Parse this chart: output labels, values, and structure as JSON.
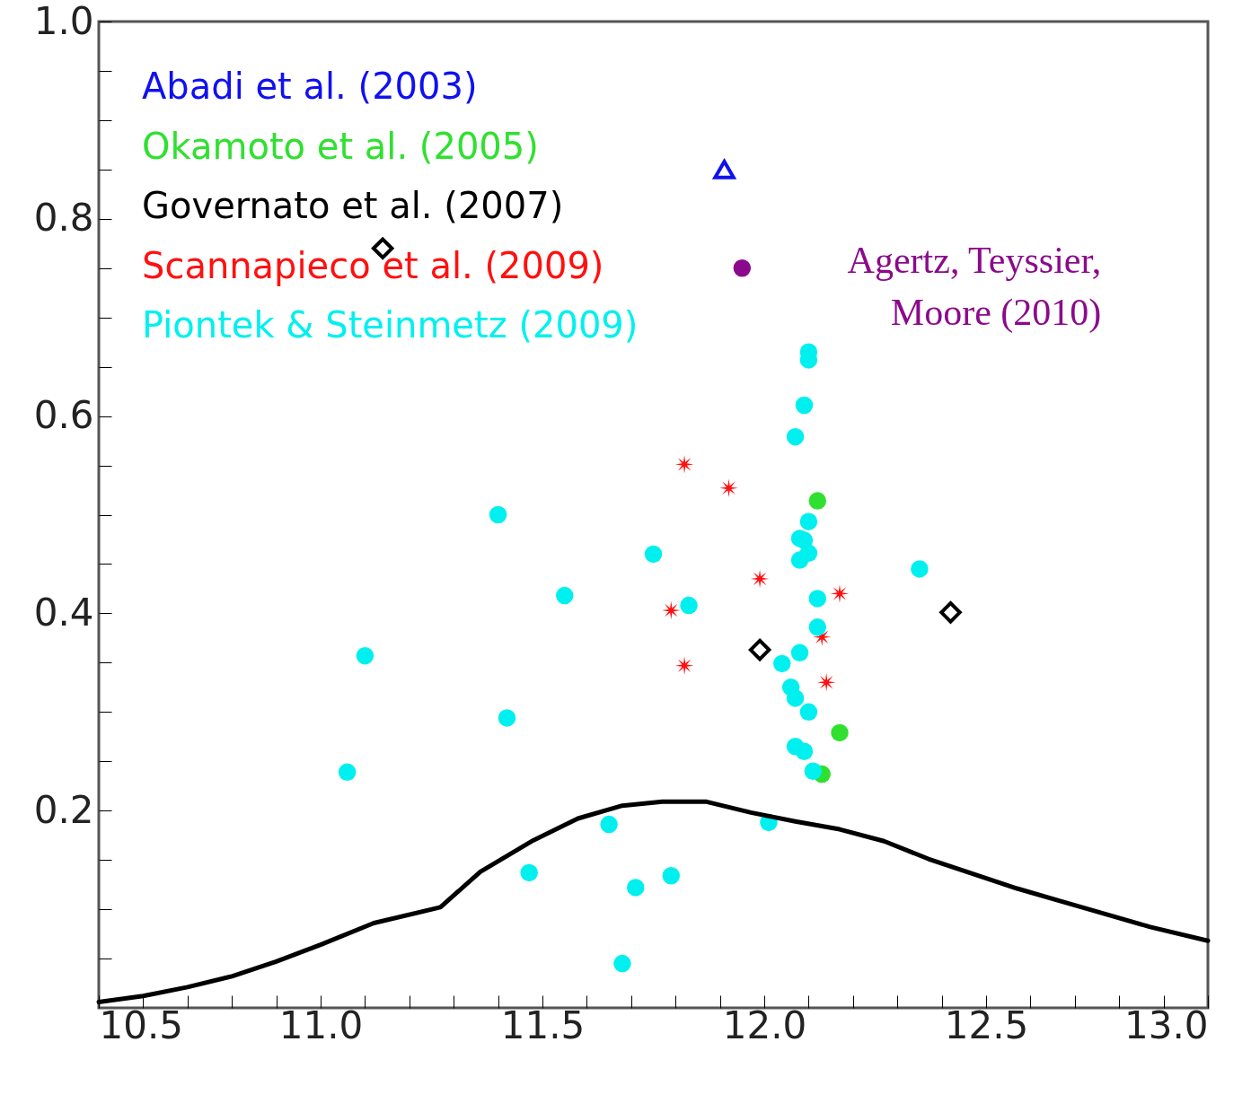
{
  "chart_data": {
    "type": "scatter",
    "legend": "top left",
    "xlim": [
      10.5,
      13.0
    ],
    "ylim": [
      0,
      1.0
    ],
    "xticks": [
      10.5,
      {
        "value": 10.6,
        "label": null
      },
      {
        "value": 10.7,
        "label": null
      },
      {
        "value": 10.8,
        "label": null
      },
      {
        "value": 10.9,
        "label": null
      },
      {
        "value": 11,
        "label": "11.0"
      },
      {
        "value": 11.1,
        "label": null
      },
      {
        "value": 11.2,
        "label": null
      },
      {
        "value": 11.3,
        "label": null
      },
      {
        "value": 11.4,
        "label": null
      },
      11.5,
      {
        "value": 11.6,
        "label": null
      },
      {
        "value": 11.7,
        "label": null
      },
      {
        "value": 11.8,
        "label": null
      },
      {
        "value": 11.9,
        "label": null
      },
      {
        "value": 12,
        "label": "12.0"
      },
      {
        "value": 12.1,
        "label": null
      },
      {
        "value": 12.2,
        "label": null
      },
      {
        "value": 12.3,
        "label": null
      },
      {
        "value": 12.4,
        "label": null
      },
      12.5,
      {
        "value": 12.6,
        "label": null
      },
      {
        "value": 12.7,
        "label": null
      },
      {
        "value": 12.8,
        "label": null
      },
      {
        "value": 12.9,
        "label": null
      },
      {
        "value": 13,
        "label": "13.0"
      }
    ],
    "yticks": [
      {
        "value": 0.05,
        "label": null
      },
      {
        "value": 0.1,
        "label": null
      },
      {
        "value": 0.15,
        "label": null
      },
      0.2,
      {
        "value": 0.25,
        "label": null
      },
      {
        "value": 0.3,
        "label": null
      },
      {
        "value": 0.35,
        "label": null
      },
      0.4,
      {
        "value": 0.45,
        "label": null
      },
      {
        "value": 0.5,
        "label": null
      },
      {
        "value": 0.55,
        "label": null
      },
      0.6,
      {
        "value": 0.65,
        "label": null
      },
      {
        "value": 0.7,
        "label": null
      },
      {
        "value": 0.75,
        "label": null
      },
      0.8,
      {
        "value": 0.85,
        "label": null
      },
      {
        "value": 0.9,
        "label": null
      },
      {
        "value": 0.95,
        "label": null
      },
      {
        "value": 1,
        "label": "1.0"
      }
    ],
    "annotations": [
      {
        "text": "Agertz, Teyssier,\nMoore (2010)",
        "x": 11.95,
        "y": 0.75
      }
    ],
    "series": [
      {
        "name": "Abadi et al. (2003)",
        "color": "#1010f0",
        "marker": "triangle",
        "x": [
          11.91
        ],
        "values": [
          0.85
        ]
      },
      {
        "name": "Okamoto et al. (2005)",
        "color": "#30e030",
        "marker": "circle",
        "x": [
          12.12,
          12.17,
          12.13
        ],
        "values": [
          0.514,
          0.279,
          0.237
        ]
      },
      {
        "name": "Governato et al. (2007)",
        "color": "#000000",
        "marker": "diamond",
        "x": [
          11.14,
          11.99,
          12.42
        ],
        "values": [
          0.77,
          0.363,
          0.401
        ]
      },
      {
        "name": "Scannapieco et al. (2009)",
        "color": "#ff1010",
        "marker": "cross",
        "x": [
          11.82,
          11.92,
          11.99,
          12.17,
          11.79,
          12.13,
          11.82,
          12.14
        ],
        "values": [
          0.551,
          0.527,
          0.435,
          0.42,
          0.403,
          0.376,
          0.347,
          0.33
        ]
      },
      {
        "name": "Piontek & Steinmetz (2009)",
        "color": "#00f0f0",
        "marker": "circle",
        "x": [
          12.1,
          12.1,
          12.09,
          12.07,
          11.4,
          12.1,
          12.08,
          12.09,
          12.1,
          12.08,
          11.75,
          12.35,
          11.55,
          12.12,
          11.83,
          11.1,
          12.12,
          12.08,
          12.04,
          12.06,
          12.07,
          12.1,
          11.42,
          12.07,
          12.09,
          12.11,
          11.06,
          12.01,
          11.65,
          11.47,
          11.79,
          11.71,
          11.68
        ],
        "values": [
          0.665,
          0.657,
          0.611,
          0.579,
          0.5,
          0.493,
          0.476,
          0.474,
          0.461,
          0.454,
          0.46,
          0.445,
          0.418,
          0.415,
          0.408,
          0.357,
          0.386,
          0.36,
          0.349,
          0.325,
          0.314,
          0.3,
          0.294,
          0.265,
          0.26,
          0.24,
          0.239,
          0.188,
          0.186,
          0.137,
          0.134,
          0.122,
          0.045
        ]
      },
      {
        "color": "#8b0a8b",
        "marker": "circle",
        "x": [
          11.95
        ],
        "values": [
          0.75
        ]
      },
      {
        "type": "line",
        "color": "#000000",
        "marker": "none",
        "x": [
          10.5,
          10.6,
          10.7,
          10.8,
          10.9,
          11.0,
          11.12,
          11.27,
          11.36,
          11.48,
          11.58,
          11.68,
          11.77,
          11.87,
          11.97,
          12.07,
          12.17,
          12.27,
          12.37,
          12.47,
          12.57,
          12.67,
          12.77,
          12.87,
          13.0
        ],
        "values": [
          0.006,
          0.012,
          0.021,
          0.032,
          0.047,
          0.064,
          0.086,
          0.102,
          0.138,
          0.17,
          0.192,
          0.205,
          0.209,
          0.209,
          0.198,
          0.189,
          0.181,
          0.169,
          0.151,
          0.136,
          0.121,
          0.108,
          0.095,
          0.082,
          0.068
        ]
      }
    ]
  }
}
